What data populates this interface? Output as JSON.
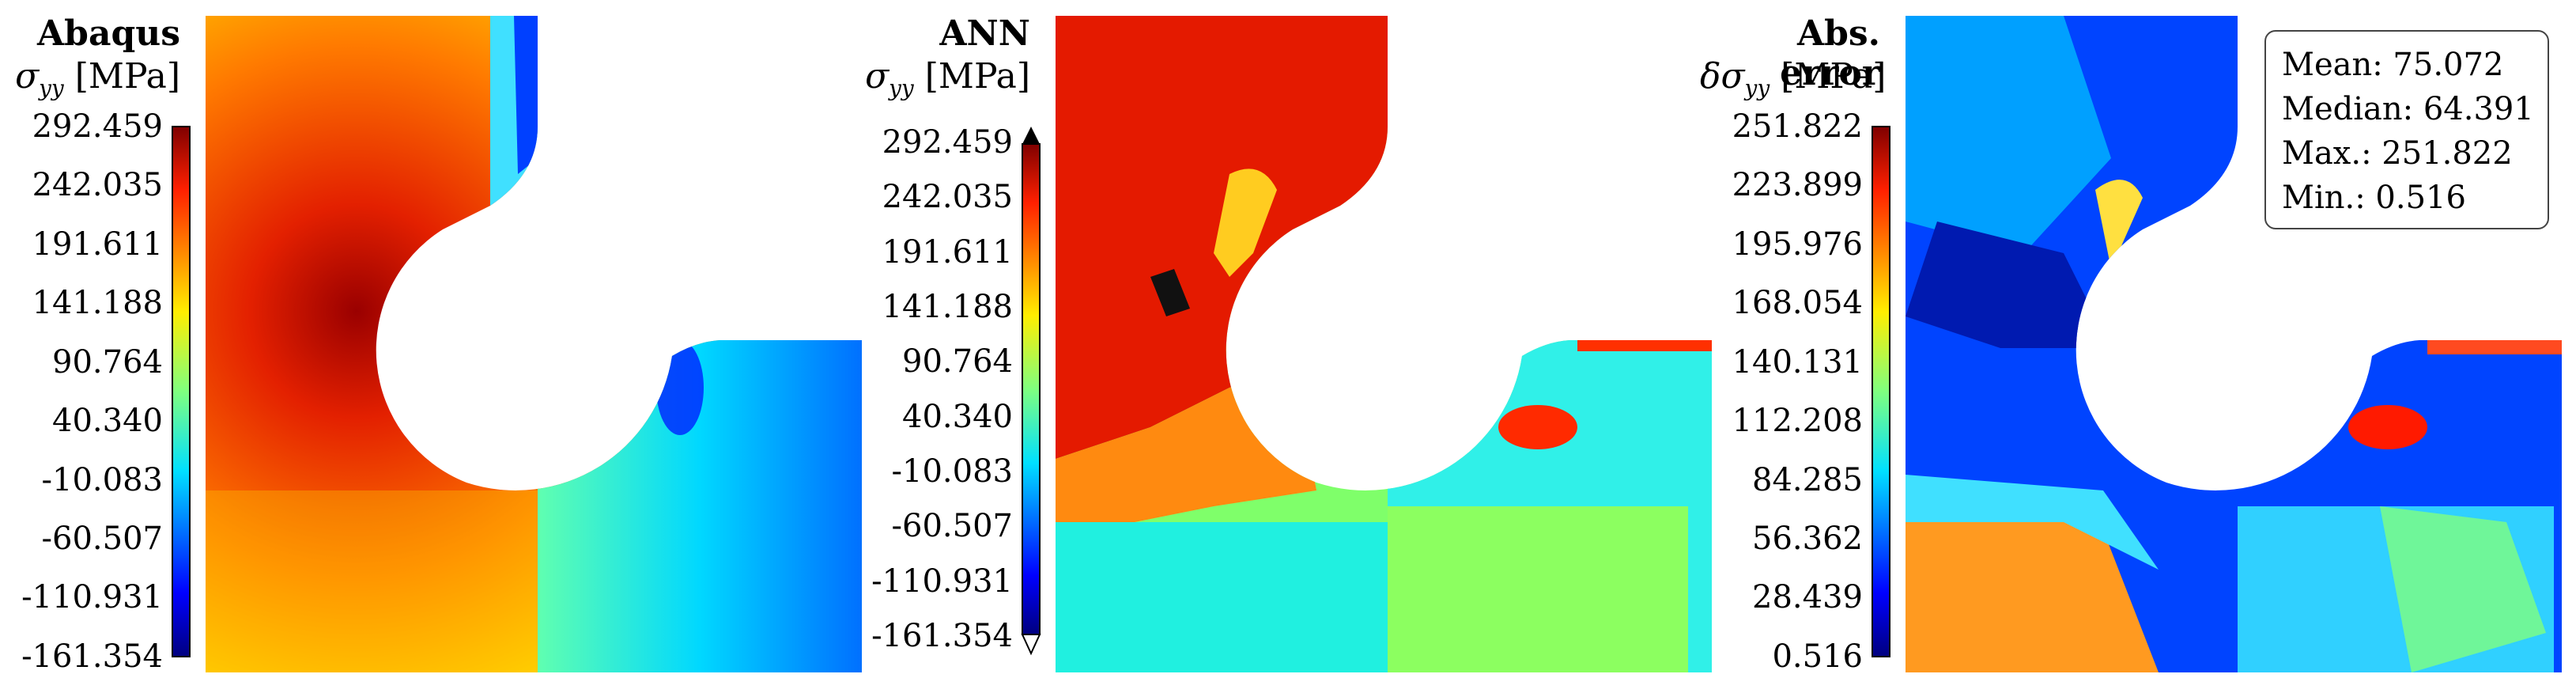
{
  "panels": [
    {
      "title": "Abaqus",
      "unit_symbol": "σ",
      "unit_sub": "yy",
      "unit": "[MPa]",
      "ticks": [
        "292.459",
        "242.035",
        "191.611",
        "141.188",
        "90.764",
        "40.340",
        "-10.083",
        "-60.507",
        "-110.931",
        "-161.354"
      ]
    },
    {
      "title": "ANN",
      "unit_symbol": "σ",
      "unit_sub": "yy",
      "unit": "[MPa]",
      "ticks": [
        "292.459",
        "242.035",
        "191.611",
        "141.188",
        "90.764",
        "40.340",
        "-10.083",
        "-60.507",
        "-110.931",
        "-161.354"
      ]
    },
    {
      "title": "Abs. error",
      "unit_symbol": "δσ",
      "unit_sub": "yy",
      "unit": "[MPa]",
      "ticks": [
        "251.822",
        "223.899",
        "195.976",
        "168.054",
        "140.131",
        "112.208",
        "84.285",
        "56.362",
        "28.439",
        "0.516"
      ]
    }
  ],
  "stats": {
    "mean": "Mean: 75.072",
    "median": "Median: 64.391",
    "max": "Max.: 251.822",
    "min": "Min.: 0.516"
  },
  "colormap": "jet"
}
